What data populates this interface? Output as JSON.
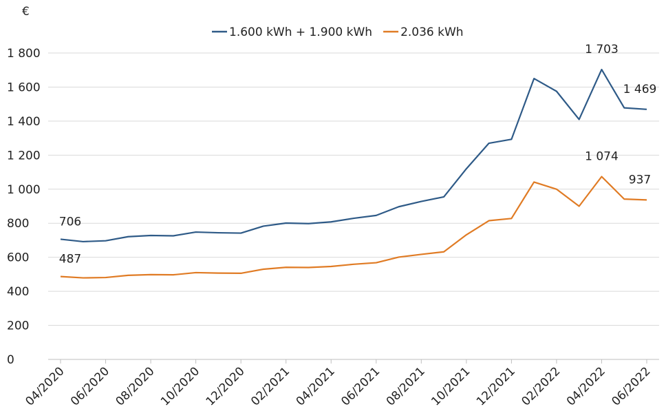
{
  "chart_data": {
    "type": "line",
    "y_label": "€",
    "categories": [
      "04/2020",
      null,
      "06/2020",
      null,
      "08/2020",
      null,
      "10/2020",
      null,
      "12/2020",
      null,
      "02/2021",
      null,
      "04/2021",
      null,
      "06/2021",
      null,
      "08/2021",
      null,
      "10/2021",
      null,
      "12/2021",
      null,
      "02/2022",
      null,
      "04/2022",
      null,
      "06/2022"
    ],
    "series": [
      {
        "name": "1.600 kWh + 1.900 kWh",
        "color": "#2e5a87",
        "values": [
          706,
          692,
          697,
          721,
          728,
          726,
          748,
          744,
          742,
          783,
          801,
          798,
          808,
          829,
          846,
          897,
          928,
          955,
          1120,
          1270,
          1293,
          1650,
          1575,
          1410,
          1703,
          1478,
          1469
        ],
        "value_labels": [
          "706",
          null,
          null,
          null,
          null,
          null,
          null,
          null,
          null,
          null,
          null,
          null,
          null,
          null,
          null,
          null,
          null,
          null,
          null,
          null,
          null,
          null,
          null,
          null,
          "1 703",
          null,
          "1 469"
        ]
      },
      {
        "name": "2.036 kWh",
        "color": "#e07b24",
        "values": [
          487,
          479,
          481,
          494,
          498,
          497,
          510,
          507,
          506,
          530,
          541,
          540,
          546,
          559,
          568,
          601,
          617,
          632,
          732,
          815,
          828,
          1042,
          1000,
          900,
          1074,
          942,
          937
        ],
        "value_labels": [
          "487",
          null,
          null,
          null,
          null,
          null,
          null,
          null,
          null,
          null,
          null,
          null,
          null,
          null,
          null,
          null,
          null,
          null,
          null,
          null,
          null,
          null,
          null,
          null,
          "1 074",
          null,
          "937"
        ]
      }
    ],
    "ylim": [
      0,
      1800
    ],
    "yticks": [
      0,
      200,
      400,
      600,
      800,
      {
        "value": 1000,
        "label": "1 000"
      },
      {
        "value": 1200,
        "label": "1 200"
      },
      {
        "value": 1400,
        "label": "1 400"
      },
      {
        "value": 1600,
        "label": "1 600"
      },
      {
        "value": 1800,
        "label": "1 800"
      }
    ],
    "grid": true,
    "legend": "top"
  }
}
